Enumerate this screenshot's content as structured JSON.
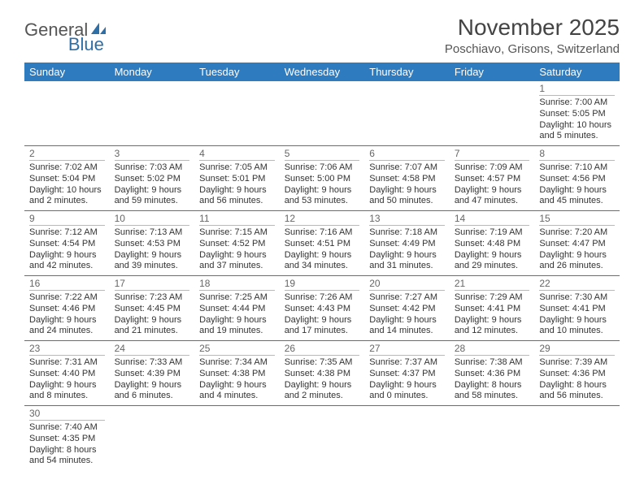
{
  "logo": {
    "text1": "General",
    "text2": "Blue"
  },
  "title": "November 2025",
  "location": "Poschiavo, Grisons, Switzerland",
  "colors": {
    "header_bg": "#2f7bbf",
    "header_text": "#ffffff",
    "border": "#2f7bbf",
    "daynum_border": "#b8b8b8",
    "text": "#333333",
    "logo_gray": "#555555",
    "logo_blue": "#2f6fa8"
  },
  "weekdays": [
    "Sunday",
    "Monday",
    "Tuesday",
    "Wednesday",
    "Thursday",
    "Friday",
    "Saturday"
  ],
  "weeks": [
    [
      null,
      null,
      null,
      null,
      null,
      null,
      {
        "n": "1",
        "sr": "Sunrise: 7:00 AM",
        "ss": "Sunset: 5:05 PM",
        "dl1": "Daylight: 10 hours",
        "dl2": "and 5 minutes."
      }
    ],
    [
      {
        "n": "2",
        "sr": "Sunrise: 7:02 AM",
        "ss": "Sunset: 5:04 PM",
        "dl1": "Daylight: 10 hours",
        "dl2": "and 2 minutes."
      },
      {
        "n": "3",
        "sr": "Sunrise: 7:03 AM",
        "ss": "Sunset: 5:02 PM",
        "dl1": "Daylight: 9 hours",
        "dl2": "and 59 minutes."
      },
      {
        "n": "4",
        "sr": "Sunrise: 7:05 AM",
        "ss": "Sunset: 5:01 PM",
        "dl1": "Daylight: 9 hours",
        "dl2": "and 56 minutes."
      },
      {
        "n": "5",
        "sr": "Sunrise: 7:06 AM",
        "ss": "Sunset: 5:00 PM",
        "dl1": "Daylight: 9 hours",
        "dl2": "and 53 minutes."
      },
      {
        "n": "6",
        "sr": "Sunrise: 7:07 AM",
        "ss": "Sunset: 4:58 PM",
        "dl1": "Daylight: 9 hours",
        "dl2": "and 50 minutes."
      },
      {
        "n": "7",
        "sr": "Sunrise: 7:09 AM",
        "ss": "Sunset: 4:57 PM",
        "dl1": "Daylight: 9 hours",
        "dl2": "and 47 minutes."
      },
      {
        "n": "8",
        "sr": "Sunrise: 7:10 AM",
        "ss": "Sunset: 4:56 PM",
        "dl1": "Daylight: 9 hours",
        "dl2": "and 45 minutes."
      }
    ],
    [
      {
        "n": "9",
        "sr": "Sunrise: 7:12 AM",
        "ss": "Sunset: 4:54 PM",
        "dl1": "Daylight: 9 hours",
        "dl2": "and 42 minutes."
      },
      {
        "n": "10",
        "sr": "Sunrise: 7:13 AM",
        "ss": "Sunset: 4:53 PM",
        "dl1": "Daylight: 9 hours",
        "dl2": "and 39 minutes."
      },
      {
        "n": "11",
        "sr": "Sunrise: 7:15 AM",
        "ss": "Sunset: 4:52 PM",
        "dl1": "Daylight: 9 hours",
        "dl2": "and 37 minutes."
      },
      {
        "n": "12",
        "sr": "Sunrise: 7:16 AM",
        "ss": "Sunset: 4:51 PM",
        "dl1": "Daylight: 9 hours",
        "dl2": "and 34 minutes."
      },
      {
        "n": "13",
        "sr": "Sunrise: 7:18 AM",
        "ss": "Sunset: 4:49 PM",
        "dl1": "Daylight: 9 hours",
        "dl2": "and 31 minutes."
      },
      {
        "n": "14",
        "sr": "Sunrise: 7:19 AM",
        "ss": "Sunset: 4:48 PM",
        "dl1": "Daylight: 9 hours",
        "dl2": "and 29 minutes."
      },
      {
        "n": "15",
        "sr": "Sunrise: 7:20 AM",
        "ss": "Sunset: 4:47 PM",
        "dl1": "Daylight: 9 hours",
        "dl2": "and 26 minutes."
      }
    ],
    [
      {
        "n": "16",
        "sr": "Sunrise: 7:22 AM",
        "ss": "Sunset: 4:46 PM",
        "dl1": "Daylight: 9 hours",
        "dl2": "and 24 minutes."
      },
      {
        "n": "17",
        "sr": "Sunrise: 7:23 AM",
        "ss": "Sunset: 4:45 PM",
        "dl1": "Daylight: 9 hours",
        "dl2": "and 21 minutes."
      },
      {
        "n": "18",
        "sr": "Sunrise: 7:25 AM",
        "ss": "Sunset: 4:44 PM",
        "dl1": "Daylight: 9 hours",
        "dl2": "and 19 minutes."
      },
      {
        "n": "19",
        "sr": "Sunrise: 7:26 AM",
        "ss": "Sunset: 4:43 PM",
        "dl1": "Daylight: 9 hours",
        "dl2": "and 17 minutes."
      },
      {
        "n": "20",
        "sr": "Sunrise: 7:27 AM",
        "ss": "Sunset: 4:42 PM",
        "dl1": "Daylight: 9 hours",
        "dl2": "and 14 minutes."
      },
      {
        "n": "21",
        "sr": "Sunrise: 7:29 AM",
        "ss": "Sunset: 4:41 PM",
        "dl1": "Daylight: 9 hours",
        "dl2": "and 12 minutes."
      },
      {
        "n": "22",
        "sr": "Sunrise: 7:30 AM",
        "ss": "Sunset: 4:41 PM",
        "dl1": "Daylight: 9 hours",
        "dl2": "and 10 minutes."
      }
    ],
    [
      {
        "n": "23",
        "sr": "Sunrise: 7:31 AM",
        "ss": "Sunset: 4:40 PM",
        "dl1": "Daylight: 9 hours",
        "dl2": "and 8 minutes."
      },
      {
        "n": "24",
        "sr": "Sunrise: 7:33 AM",
        "ss": "Sunset: 4:39 PM",
        "dl1": "Daylight: 9 hours",
        "dl2": "and 6 minutes."
      },
      {
        "n": "25",
        "sr": "Sunrise: 7:34 AM",
        "ss": "Sunset: 4:38 PM",
        "dl1": "Daylight: 9 hours",
        "dl2": "and 4 minutes."
      },
      {
        "n": "26",
        "sr": "Sunrise: 7:35 AM",
        "ss": "Sunset: 4:38 PM",
        "dl1": "Daylight: 9 hours",
        "dl2": "and 2 minutes."
      },
      {
        "n": "27",
        "sr": "Sunrise: 7:37 AM",
        "ss": "Sunset: 4:37 PM",
        "dl1": "Daylight: 9 hours",
        "dl2": "and 0 minutes."
      },
      {
        "n": "28",
        "sr": "Sunrise: 7:38 AM",
        "ss": "Sunset: 4:36 PM",
        "dl1": "Daylight: 8 hours",
        "dl2": "and 58 minutes."
      },
      {
        "n": "29",
        "sr": "Sunrise: 7:39 AM",
        "ss": "Sunset: 4:36 PM",
        "dl1": "Daylight: 8 hours",
        "dl2": "and 56 minutes."
      }
    ],
    [
      {
        "n": "30",
        "sr": "Sunrise: 7:40 AM",
        "ss": "Sunset: 4:35 PM",
        "dl1": "Daylight: 8 hours",
        "dl2": "and 54 minutes."
      },
      null,
      null,
      null,
      null,
      null,
      null
    ]
  ]
}
